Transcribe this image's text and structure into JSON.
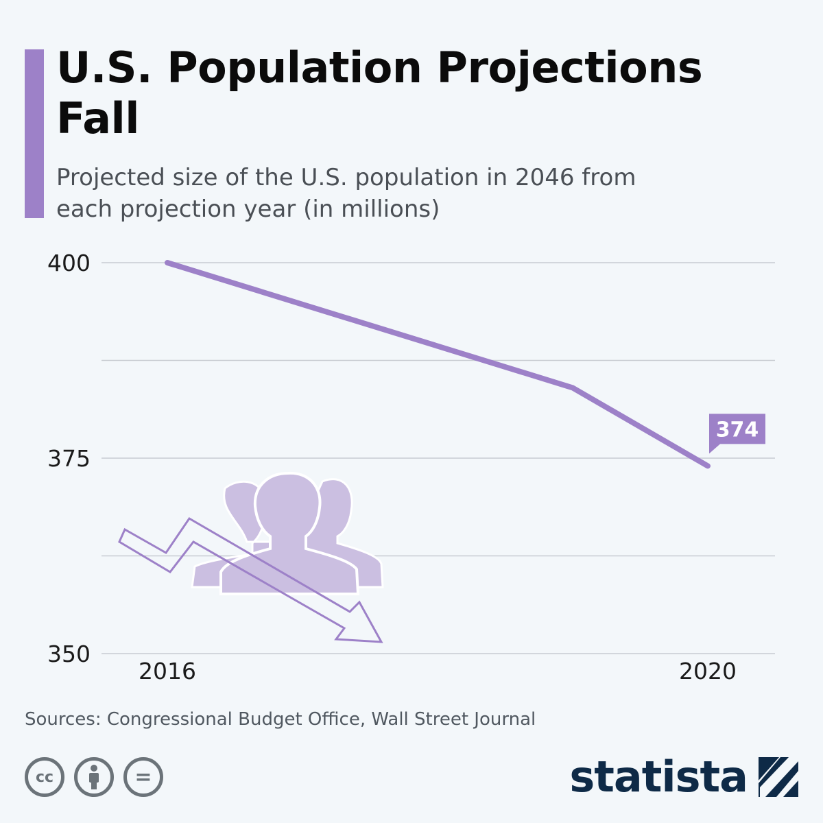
{
  "header": {
    "title": "U.S. Population Projections Fall",
    "subtitle": "Projected size of the U.S. population in 2046 from each projection year (in millions)"
  },
  "chart_data": {
    "type": "line",
    "title": "U.S. Population Projections Fall",
    "subtitle": "Projected size of the U.S. population in 2046 from each projection year (in millions)",
    "xlabel": "",
    "ylabel": "",
    "x": [
      2016,
      2019,
      2020
    ],
    "x_tick_labels": [
      "2016",
      "2020"
    ],
    "x_tick_values": [
      2016,
      2020
    ],
    "series": [
      {
        "values": [
          400,
          384,
          374
        ],
        "color": "#9d81c8"
      }
    ],
    "ylim": [
      350,
      400
    ],
    "y_ticks": [
      400,
      375,
      350
    ],
    "grid": true,
    "data_labels": [
      {
        "x": 2020,
        "y": 374,
        "text": "374"
      }
    ],
    "annotation_icon": "declining-population-icon"
  },
  "footer": {
    "sources": "Sources: Congressional Budget Office, Wall Street Journal",
    "license_icons": [
      "cc-icon",
      "attribution-icon",
      "no-derivatives-icon"
    ],
    "cc_symbol": "cc",
    "nd_symbol": "=",
    "brand": "statista"
  },
  "colors": {
    "accent": "#9d81c8",
    "brand": "#0e2a47",
    "background": "#f3f7fa"
  }
}
